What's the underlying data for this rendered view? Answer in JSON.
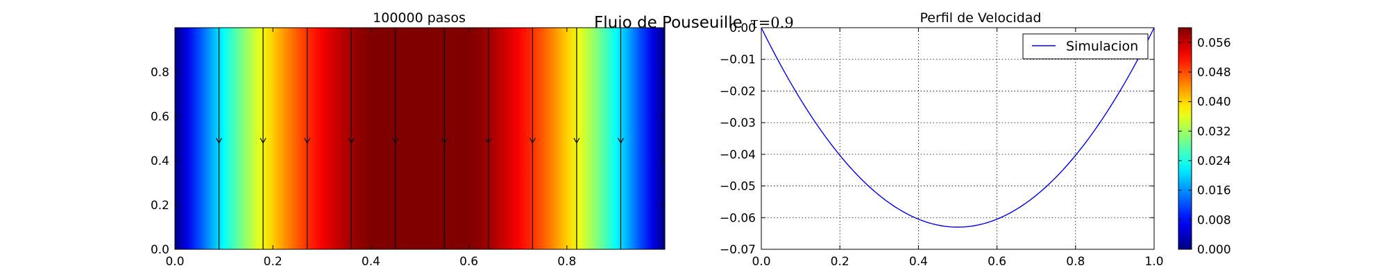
{
  "figure": {
    "suptitle": "Flujo de Pouseuille",
    "suptitle_math": "τ=0.9"
  },
  "chart_data": [
    {
      "type": "heatmap",
      "title": "100000 pasos",
      "xlim": [
        0,
        1
      ],
      "ylim": [
        0,
        1
      ],
      "xticks": [
        "0.0",
        "0.2",
        "0.4",
        "0.6",
        "0.8"
      ],
      "yticks": [
        "0.0",
        "0.2",
        "0.4",
        "0.6",
        "0.8"
      ],
      "colormap": "jet",
      "field": "velocity magnitude, parabolic in x, max at x=0.5",
      "vmax": 0.063,
      "streamlines_x": [
        0.09,
        0.18,
        0.27,
        0.36,
        0.45,
        0.55,
        0.64,
        0.73,
        0.82,
        0.91
      ],
      "arrow_y": 0.48,
      "arrow_direction": "down"
    },
    {
      "type": "line",
      "title": "Perfil de Velocidad",
      "xlim": [
        0,
        1
      ],
      "ylim": [
        -0.07,
        0
      ],
      "xticks": [
        "0.0",
        "0.2",
        "0.4",
        "0.6",
        "0.8",
        "1.0"
      ],
      "yticks": [
        "0.00",
        "−0.01",
        "−0.02",
        "−0.03",
        "−0.04",
        "−0.05",
        "−0.06",
        "−0.07"
      ],
      "grid": true,
      "legend": "top-right",
      "series": [
        {
          "name": "Simulacion",
          "color": "#0000ff",
          "model": "parabola",
          "min_x": 0.5,
          "min_y": -0.063
        }
      ]
    },
    {
      "type": "colorbar",
      "colormap": "jet",
      "range": [
        0,
        0.06
      ],
      "ticks": [
        "0.000",
        "0.008",
        "0.016",
        "0.024",
        "0.032",
        "0.040",
        "0.048",
        "0.056"
      ]
    }
  ]
}
